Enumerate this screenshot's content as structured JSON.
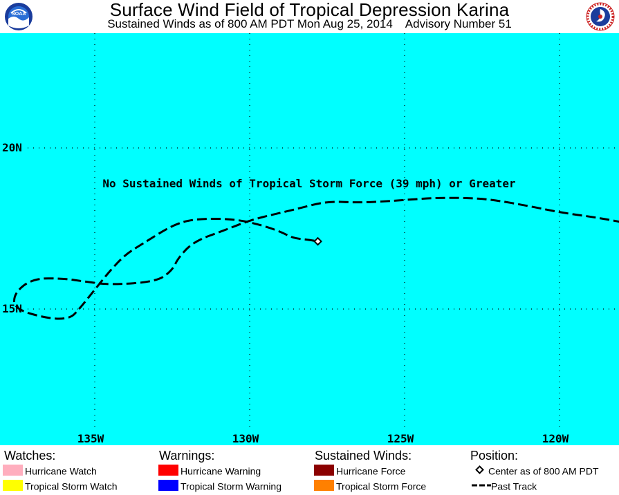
{
  "header": {
    "title": "Surface Wind Field of Tropical Depression Karina",
    "subtitle": "Sustained Winds as of 800 AM PDT Mon Aug 25, 2014    Advisory Number 51",
    "logos": [
      "noaa-logo",
      "national-weather-service-logo"
    ]
  },
  "map": {
    "background_color": "#00ffff",
    "latitude_labels": [
      "20N",
      "15N"
    ],
    "longitude_labels": [
      "135W",
      "130W",
      "125W",
      "120W"
    ],
    "annotation": "No Sustained Winds of Tropical Storm Force (39 mph) or Greater",
    "storm_center": {
      "lat": 17.1,
      "lon": 127.8
    },
    "past_track": [
      [
        114.0,
        17.0
      ],
      [
        115.5,
        17.3
      ],
      [
        116.5,
        17.4
      ],
      [
        118.5,
        17.8
      ],
      [
        120.0,
        18.0
      ],
      [
        121.0,
        18.2
      ],
      [
        122.2,
        18.4
      ],
      [
        123.0,
        18.45
      ],
      [
        124.0,
        18.45
      ],
      [
        124.8,
        18.4
      ],
      [
        125.5,
        18.35
      ],
      [
        126.5,
        18.3
      ],
      [
        127.5,
        18.35
      ],
      [
        128.5,
        18.1
      ],
      [
        129.4,
        17.9
      ],
      [
        130.0,
        17.75
      ],
      [
        130.8,
        17.45
      ],
      [
        131.8,
        17.1
      ],
      [
        132.3,
        16.6
      ],
      [
        132.5,
        16.2
      ],
      [
        133.0,
        15.85
      ],
      [
        134.5,
        15.75
      ],
      [
        135.3,
        15.85
      ],
      [
        136.0,
        15.95
      ],
      [
        137.0,
        15.95
      ],
      [
        137.6,
        15.5
      ],
      [
        137.6,
        15.0
      ],
      [
        136.5,
        14.7
      ],
      [
        135.8,
        14.7
      ],
      [
        135.5,
        15.0
      ],
      [
        135.0,
        15.6
      ],
      [
        134.5,
        16.2
      ],
      [
        134.0,
        16.7
      ],
      [
        133.5,
        17.0
      ],
      [
        132.5,
        17.6
      ],
      [
        131.8,
        17.8
      ],
      [
        130.5,
        17.8
      ],
      [
        129.6,
        17.6
      ],
      [
        129.0,
        17.4
      ],
      [
        128.6,
        17.2
      ],
      [
        128.1,
        17.15
      ],
      [
        127.8,
        17.1
      ]
    ]
  },
  "legend": {
    "watches": {
      "title": "Watches:",
      "items": [
        {
          "label": "Hurricane Watch",
          "color": "#ffaebe"
        },
        {
          "label": "Tropical Storm Watch",
          "color": "#ffff00"
        }
      ]
    },
    "warnings": {
      "title": "Warnings:",
      "items": [
        {
          "label": "Hurricane Warning",
          "color": "#ff0000"
        },
        {
          "label": "Tropical Storm Warning",
          "color": "#0000ff"
        }
      ]
    },
    "winds": {
      "title": "Sustained Winds:",
      "items": [
        {
          "label": "Hurricane Force",
          "color": "#8b0000"
        },
        {
          "label": "Tropical Storm Force",
          "color": "#ff8000"
        }
      ]
    },
    "position": {
      "title": "Position:",
      "items": [
        {
          "label": "Center as of 800 AM PDT",
          "icon": "diamond-icon"
        },
        {
          "label": "Past Track",
          "icon": "dashed-line-icon"
        }
      ]
    }
  }
}
